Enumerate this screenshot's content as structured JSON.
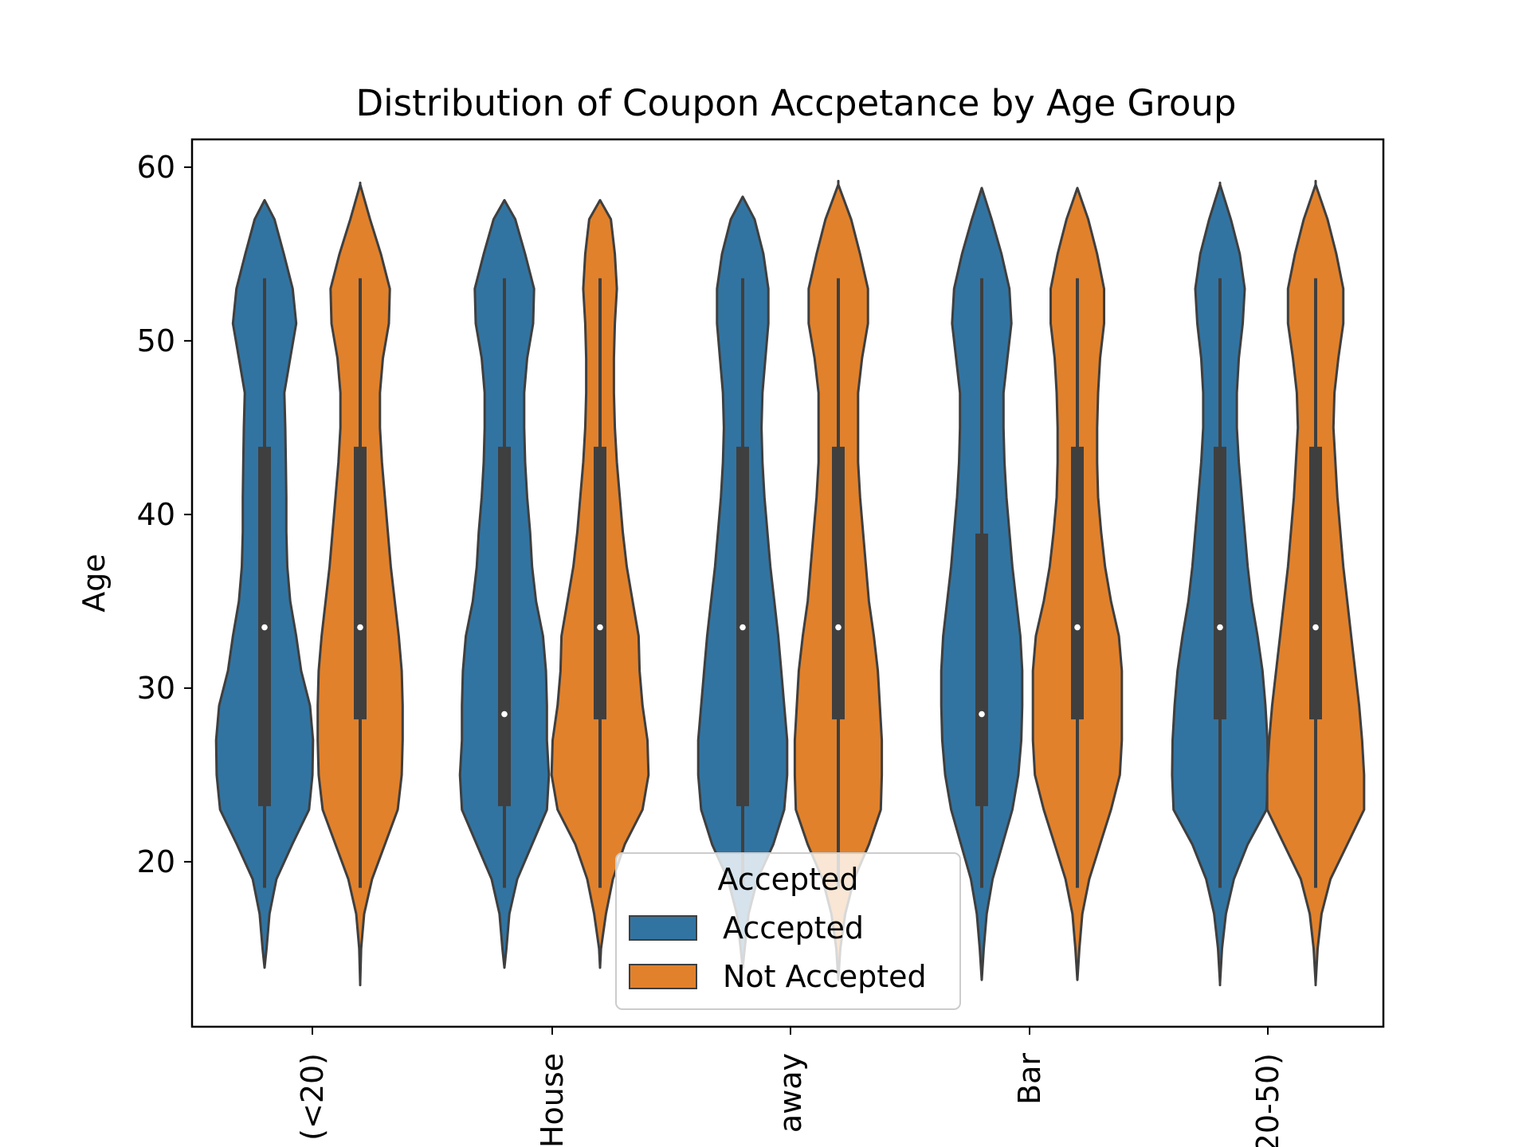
{
  "chart_data": {
    "type": "violin",
    "title": "Distribution of Coupon Accpetance by Age Group",
    "xlabel": "",
    "ylabel": "Age",
    "ylim": [
      10.5,
      61.6
    ],
    "yticks": [
      20,
      30,
      40,
      50,
      60
    ],
    "categories": [
      "(<20)",
      "House",
      "away",
      "Bar",
      "20-50)"
    ],
    "legend": {
      "title": "Accepted",
      "placement": "lower center",
      "entries": [
        "Accepted",
        "Not Accepted"
      ]
    },
    "series": [
      {
        "name": "Accepted",
        "color": "#3274a1",
        "violins": [
          {
            "ymin": 13.9,
            "ymax": 58.1,
            "whisker_low": 18.5,
            "whisker_high": 53.6,
            "q1": 23.2,
            "q3": 43.9,
            "median": 33.5
          },
          {
            "ymin": 13.9,
            "ymax": 58.1,
            "whisker_low": 18.5,
            "whisker_high": 53.6,
            "q1": 23.2,
            "q3": 43.9,
            "median": 28.5
          },
          {
            "ymin": 13.9,
            "ymax": 58.3,
            "whisker_low": 18.5,
            "whisker_high": 53.6,
            "q1": 23.2,
            "q3": 43.9,
            "median": 33.5
          },
          {
            "ymin": 13.2,
            "ymax": 58.8,
            "whisker_low": 18.5,
            "whisker_high": 53.6,
            "q1": 23.2,
            "q3": 38.9,
            "median": 28.5
          },
          {
            "ymin": 12.9,
            "ymax": 59.1,
            "whisker_low": 18.5,
            "whisker_high": 53.6,
            "q1": 28.2,
            "q3": 43.9,
            "median": 33.5
          }
        ]
      },
      {
        "name": "Not Accepted",
        "color": "#e1812c",
        "violins": [
          {
            "ymin": 12.9,
            "ymax": 59.1,
            "whisker_low": 18.5,
            "whisker_high": 53.6,
            "q1": 28.2,
            "q3": 43.9,
            "median": 33.5
          },
          {
            "ymin": 13.9,
            "ymax": 58.1,
            "whisker_low": 18.5,
            "whisker_high": 53.6,
            "q1": 28.2,
            "q3": 43.9,
            "median": 33.5
          },
          {
            "ymin": 13.2,
            "ymax": 59.2,
            "whisker_low": 18.5,
            "whisker_high": 53.6,
            "q1": 28.2,
            "q3": 43.9,
            "median": 33.5
          },
          {
            "ymin": 13.2,
            "ymax": 58.8,
            "whisker_low": 18.5,
            "whisker_high": 53.6,
            "q1": 28.2,
            "q3": 43.9,
            "median": 33.5
          },
          {
            "ymin": 12.9,
            "ymax": 59.2,
            "whisker_low": 18.5,
            "whisker_high": 53.6,
            "q1": 28.2,
            "q3": 43.9,
            "median": 33.5
          }
        ]
      }
    ],
    "violin_shapes": {
      "note_units": "half-width as fraction of max half-width at each age",
      "ages": [
        13.0,
        15.0,
        17.0,
        19.0,
        21.0,
        23.0,
        25.0,
        27.0,
        29.0,
        31.0,
        33.0,
        35.0,
        37.0,
        39.0,
        41.0,
        43.0,
        45.0,
        47.0,
        49.0,
        51.0,
        53.0,
        55.0,
        57.0,
        59.0
      ],
      "profiles": [
        [
          0.0,
          0.04,
          0.1,
          0.24,
          0.56,
          0.9,
          0.97,
          0.98,
          0.92,
          0.74,
          0.64,
          0.52,
          0.46,
          0.44,
          0.44,
          0.43,
          0.42,
          0.4,
          0.52,
          0.64,
          0.57,
          0.39,
          0.2,
          0.0
        ],
        [
          0.0,
          0.02,
          0.08,
          0.24,
          0.5,
          0.76,
          0.84,
          0.86,
          0.86,
          0.84,
          0.78,
          0.7,
          0.62,
          0.56,
          0.5,
          0.44,
          0.4,
          0.4,
          0.46,
          0.58,
          0.6,
          0.42,
          0.2,
          0.0
        ],
        [
          0.0,
          0.04,
          0.1,
          0.26,
          0.56,
          0.86,
          0.9,
          0.86,
          0.86,
          0.84,
          0.78,
          0.64,
          0.56,
          0.52,
          0.46,
          0.42,
          0.4,
          0.4,
          0.46,
          0.58,
          0.6,
          0.42,
          0.22,
          0.0
        ],
        [
          0.0,
          0.02,
          0.12,
          0.26,
          0.5,
          0.86,
          0.98,
          0.96,
          0.86,
          0.8,
          0.78,
          0.66,
          0.54,
          0.46,
          0.4,
          0.34,
          0.3,
          0.28,
          0.28,
          0.3,
          0.34,
          0.3,
          0.22,
          0.0
        ],
        [
          0.0,
          0.04,
          0.12,
          0.3,
          0.62,
          0.84,
          0.9,
          0.9,
          0.84,
          0.78,
          0.72,
          0.64,
          0.56,
          0.5,
          0.44,
          0.4,
          0.38,
          0.4,
          0.46,
          0.52,
          0.52,
          0.42,
          0.24,
          0.0
        ],
        [
          0.0,
          0.04,
          0.14,
          0.32,
          0.62,
          0.86,
          0.88,
          0.88,
          0.84,
          0.8,
          0.72,
          0.62,
          0.56,
          0.5,
          0.44,
          0.4,
          0.4,
          0.4,
          0.48,
          0.6,
          0.6,
          0.44,
          0.26,
          0.0
        ],
        [
          0.0,
          0.04,
          0.1,
          0.22,
          0.42,
          0.62,
          0.74,
          0.8,
          0.82,
          0.82,
          0.78,
          0.7,
          0.62,
          0.56,
          0.5,
          0.46,
          0.44,
          0.44,
          0.52,
          0.6,
          0.56,
          0.4,
          0.2,
          0.0
        ],
        [
          0.0,
          0.04,
          0.1,
          0.24,
          0.46,
          0.68,
          0.86,
          0.9,
          0.9,
          0.9,
          0.84,
          0.68,
          0.56,
          0.48,
          0.42,
          0.4,
          0.4,
          0.42,
          0.46,
          0.54,
          0.54,
          0.4,
          0.22,
          0.0
        ],
        [
          0.0,
          0.04,
          0.12,
          0.28,
          0.56,
          0.94,
          0.97,
          0.96,
          0.92,
          0.86,
          0.76,
          0.64,
          0.56,
          0.5,
          0.44,
          0.38,
          0.34,
          0.34,
          0.38,
          0.46,
          0.5,
          0.4,
          0.22,
          0.0
        ],
        [
          0.0,
          0.04,
          0.12,
          0.3,
          0.64,
          0.98,
          0.98,
          0.94,
          0.88,
          0.8,
          0.72,
          0.64,
          0.56,
          0.5,
          0.44,
          0.4,
          0.36,
          0.38,
          0.46,
          0.56,
          0.56,
          0.42,
          0.24,
          0.0
        ]
      ]
    }
  }
}
